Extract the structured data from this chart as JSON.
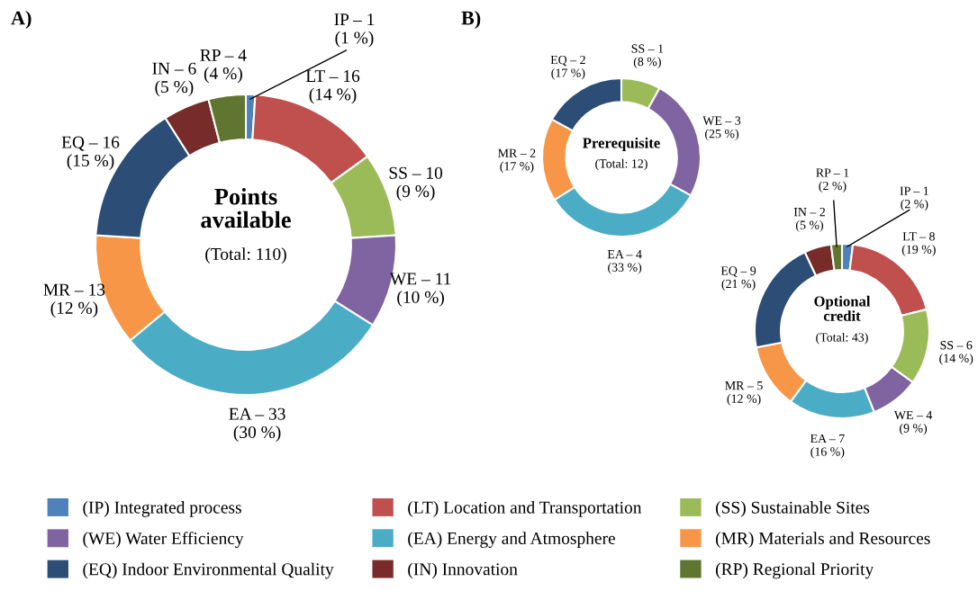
{
  "chart_data": [
    {
      "type": "donut",
      "title": "A)",
      "legend": "bottom",
      "categories": [
        "(IP) Integrated process",
        "(LT) Location and Transportation",
        "(SS) Sustainable Sites",
        "(WE) Water Efficiency",
        "(EA) Energy and Atmosphere",
        "(MR) Materials and Resources",
        "(EQ) Indoor Environmental Quality",
        "(IN) Innovation",
        "(RP) Regional Priority"
      ],
      "values": [
        1,
        14,
        9,
        10,
        30,
        12,
        15,
        5,
        4
      ],
      "colors": [
        "#4f81bd",
        "#c0504d",
        "#9bbb59",
        "#8064a2",
        "#4bacc6",
        "#f79646",
        "#2c4d75",
        "#772c2a",
        "#5f7530"
      ],
      "value_labels": [
        "IP – 1\n(1 %)",
        "LT – 16\n(14 %)",
        "SS – 10\n(9 %)",
        "WE – 11\n(10 %)",
        "EA – 33\n(30 %)",
        "MR – 13\n(12 %)",
        "EQ – 16\n(15 %)",
        "IN – 6\n(5 %)",
        "RP – 4\n(4 %)"
      ],
      "annotations": [
        "Points\navailable",
        "(Total: 110)"
      ]
    },
    {
      "type": "donut",
      "title": "B)",
      "categories": [
        null,
        null,
        null,
        null,
        null
      ],
      "values": [
        8,
        25,
        33,
        17,
        17
      ],
      "colors": [
        "#9bbb59",
        "#8064a2",
        "#4bacc6",
        "#f79646",
        "#2c4d75"
      ],
      "value_labels": [
        "SS – 1\n(8 %)",
        "WE – 3\n(25 %)",
        "EA – 4\n(33 %)",
        "MR – 2\n(17 %)",
        "EQ – 2\n(17 %)"
      ],
      "annotations": [
        "Prerequisite",
        "(Total: 12)"
      ]
    },
    {
      "type": "donut",
      "categories": [
        null,
        null,
        null,
        null,
        null,
        null,
        null,
        null,
        null
      ],
      "values": [
        2,
        19,
        14,
        9,
        16,
        12,
        21,
        5,
        2
      ],
      "colors": [
        "#4f81bd",
        "#c0504d",
        "#9bbb59",
        "#8064a2",
        "#4bacc6",
        "#f79646",
        "#2c4d75",
        "#772c2a",
        "#5f7530"
      ],
      "value_labels": [
        "IP – 1\n(2 %)",
        "LT – 8\n(19 %)",
        "SS – 6\n(14 %)",
        "WE – 4\n(9 %)",
        "EA – 7\n(16 %)",
        "MR – 5\n(12 %)",
        "EQ – 9\n(21 %)",
        "IN – 2\n(5 %)",
        "RP – 1\n(2 %)"
      ],
      "annotations": [
        "Optional\ncredit",
        "(Total: 43)"
      ]
    }
  ]
}
